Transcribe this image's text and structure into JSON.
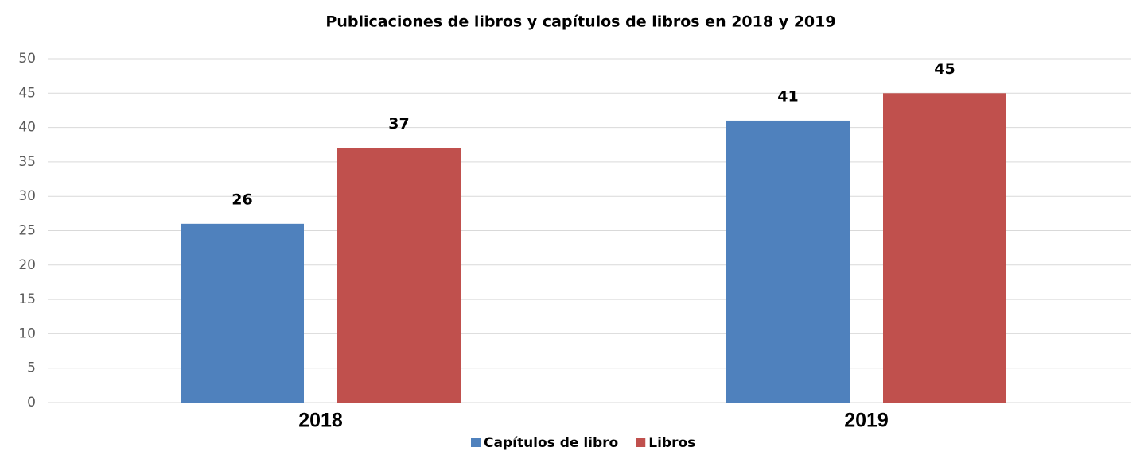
{
  "chart_data": {
    "type": "bar",
    "title": "Publicaciones de libros y capítulos de libros en 2018 y  2019",
    "categories": [
      "2018",
      "2019"
    ],
    "series": [
      {
        "name": "Capítulos de libro",
        "color": "#4f81bd",
        "values": [
          26,
          41
        ]
      },
      {
        "name": "Libros",
        "color": "#c0504d",
        "values": [
          37,
          45
        ]
      }
    ],
    "ylim": [
      0,
      50
    ],
    "yticks": [
      0,
      5,
      10,
      15,
      20,
      25,
      30,
      35,
      40,
      45,
      50
    ],
    "grid": true,
    "legend": "bottom"
  }
}
